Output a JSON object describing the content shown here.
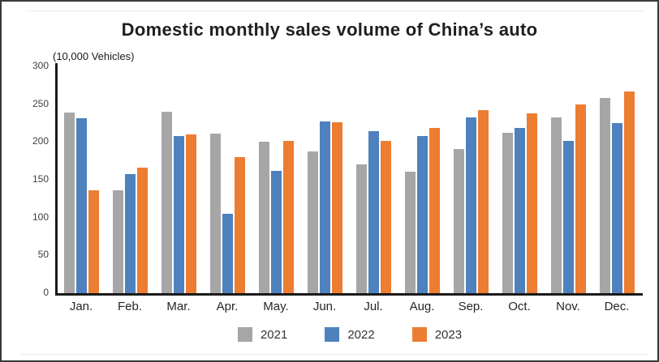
{
  "title": "Domestic monthly sales volume of China’s auto",
  "unit_label": "(10,000 Vehicles)",
  "colors": {
    "series_2021": "#A6A6A6",
    "series_2022": "#4E81BD",
    "series_2023": "#ED7D31",
    "axis": "#1a1a1a",
    "frame_border": "#3a3a3a",
    "tick_text": "#404040"
  },
  "chart_data": {
    "type": "bar",
    "title": "Domestic monthly sales volume of China’s auto",
    "ylabel": "(10,000 Vehicles)",
    "xlabel": "",
    "categories": [
      "Jan.",
      "Feb.",
      "Mar.",
      "Apr.",
      "May.",
      "Jun.",
      "Jul.",
      "Aug.",
      "Sep.",
      "Oct.",
      "Nov.",
      "Dec."
    ],
    "series": [
      {
        "name": "2021",
        "color": "#A6A6A6",
        "values": [
          239,
          136,
          240,
          211,
          200,
          187,
          170,
          161,
          191,
          212,
          233,
          258
        ]
      },
      {
        "name": "2022",
        "color": "#4E81BD",
        "values": [
          231,
          157,
          208,
          105,
          162,
          227,
          214,
          208,
          232,
          219,
          201,
          225
        ]
      },
      {
        "name": "2023",
        "color": "#ED7D31",
        "values": [
          136,
          166,
          210,
          180,
          201,
          226,
          201,
          219,
          242,
          238,
          250,
          267
        ]
      }
    ],
    "ylim": [
      0,
      300
    ],
    "yticks": [
      0,
      50,
      100,
      150,
      200,
      250,
      300
    ],
    "grid": false,
    "legend_position": "bottom"
  },
  "legend": {
    "items": [
      {
        "label": "2021",
        "color": "#A6A6A6"
      },
      {
        "label": "2022",
        "color": "#4E81BD"
      },
      {
        "label": "2023",
        "color": "#ED7D31"
      }
    ]
  }
}
